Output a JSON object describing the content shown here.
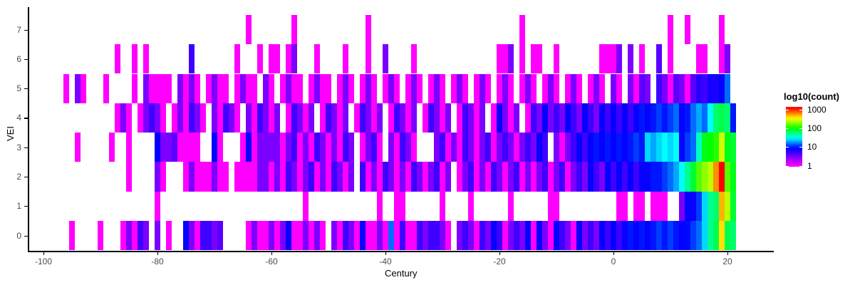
{
  "chart_data": {
    "type": "heatmap",
    "title": "",
    "xlabel": "Century",
    "ylabel": "VEI",
    "x_ticks": [
      -100,
      -80,
      -60,
      -40,
      -20,
      0,
      20
    ],
    "y_ticks": [
      0,
      1,
      2,
      3,
      4,
      5,
      6,
      7
    ],
    "x_range": [
      -96,
      21
    ],
    "grid": false,
    "legend": {
      "title": "log10(count)",
      "ticks": [
        1000,
        100,
        10,
        1
      ],
      "scale": "log10",
      "palette": "rainbow: magenta=1, violet=3, blue=10, cyan=30, green=100, yellow=400, orange=600, red=1000+",
      "position": "right"
    },
    "cells": {
      "7": {
        "-64": 1,
        "-56": 1,
        "-43": 1,
        "-16": 1,
        "10": 1,
        "13": 1,
        "19": 1
      },
      "6": {
        "-87": 1,
        "-84": 1,
        "-82": 1,
        "-74": 5,
        "-66": 1,
        "-62": 1,
        "-60": 1,
        "-59": 1,
        "-57": 1,
        "-56": 3,
        "-52": 1,
        "-47": 1,
        "-43": 1,
        "-40": 3,
        "-35": 1,
        "-20": 1,
        "-19": 1,
        "-18": 3,
        "-16": 1,
        "-14": 1,
        "-13": 1,
        "-10": 1,
        "-2": 1,
        "-1": 1,
        "0": 1,
        "1": 3,
        "3": 3,
        "5": 1,
        "8": 4,
        "10": 1,
        "15": 1,
        "16": 1,
        "19": 1,
        "20": 3
      },
      "5": {
        "-96": 1,
        "-94": 3,
        "-93": 1,
        "-89": 1,
        "-84": 1,
        "-82": 3,
        "-81": 1,
        "-80": 1,
        "-79": 1,
        "-78": 1,
        "-76": 3,
        "-75": 1,
        "-74": 3,
        "-73": 1,
        "-71": 1,
        "-70": 3,
        "-69": 1,
        "-68": 1,
        "-66": 1,
        "-65": 3,
        "-64": 1,
        "-63": 1,
        "-61": 3,
        "-60": 1,
        "-58": 1,
        "-57": 3,
        "-56": 1,
        "-55": 1,
        "-53": 1,
        "-52": 3,
        "-51": 1,
        "-50": 1,
        "-48": 1,
        "-47": 3,
        "-46": 1,
        "-44": 1,
        "-43": 3,
        "-42": 1,
        "-40": 1,
        "-39": 3,
        "-38": 1,
        "-36": 1,
        "-35": 3,
        "-34": 1,
        "-32": 1,
        "-31": 3,
        "-30": 1,
        "-28": 1,
        "-27": 3,
        "-26": 1,
        "-24": 1,
        "-23": 3,
        "-22": 1,
        "-20": 1,
        "-19": 3,
        "-18": 1,
        "-16": 1,
        "-15": 3,
        "-14": 1,
        "-12": 1,
        "-11": 3,
        "-10": 1,
        "-8": 1,
        "-7": 3,
        "-6": 1,
        "-4": 1,
        "-3": 3,
        "-2": 1,
        "0": 3,
        "1": 1,
        "3": 3,
        "4": 1,
        "5": 4,
        "6": 3,
        "8": 5,
        "9": 3,
        "10": 1,
        "11": 4,
        "12": 3,
        "13": 1,
        "14": 4,
        "15": 6,
        "16": 5,
        "17": 7,
        "18": 7,
        "19": 8,
        "20": 15
      },
      "4": {
        "-87": 1,
        "-86": 3,
        "-85": 1,
        "-83": 1,
        "-82": 3,
        "-81": 5,
        "-80": 3,
        "-79": 1,
        "-77": 1,
        "-76": 3,
        "-75": 1,
        "-74": 5,
        "-73": 3,
        "-72": 1,
        "-70": 3,
        "-69": 1,
        "-68": 5,
        "-67": 3,
        "-66": 1,
        "-64": 3,
        "-63": 1,
        "-62": 5,
        "-61": 3,
        "-60": 1,
        "-59": 3,
        "-57": 1,
        "-56": 5,
        "-55": 3,
        "-54": 1,
        "-53": 3,
        "-51": 1,
        "-50": 5,
        "-49": 3,
        "-48": 1,
        "-47": 3,
        "-45": 1,
        "-44": 5,
        "-43": 3,
        "-42": 1,
        "-41": 3,
        "-39": 1,
        "-38": 5,
        "-37": 3,
        "-36": 1,
        "-35": 3,
        "-33": 1,
        "-32": 5,
        "-31": 3,
        "-30": 1,
        "-29": 3,
        "-27": 1,
        "-26": 5,
        "-25": 3,
        "-24": 1,
        "-23": 3,
        "-21": 1,
        "-20": 8,
        "-19": 3,
        "-18": 1,
        "-17": 3,
        "-15": 1,
        "-14": 5,
        "-13": 3,
        "-12": 8,
        "-11": 3,
        "-10": 5,
        "-9": 3,
        "-8": 8,
        "-7": 5,
        "-6": 3,
        "-5": 8,
        "-4": 5,
        "-3": 3,
        "-2": 8,
        "-1": 5,
        "0": 8,
        "1": 5,
        "2": 8,
        "3": 5,
        "4": 8,
        "5": 10,
        "6": 8,
        "7": 10,
        "8": 12,
        "9": 10,
        "10": 12,
        "11": 15,
        "12": 8,
        "13": 10,
        "14": 15,
        "15": 20,
        "16": 15,
        "17": 30,
        "18": 60,
        "19": 70,
        "20": 60,
        "21": 10
      },
      "3": {
        "-94": 1,
        "-88": 1,
        "-85": 1,
        "-80": 8,
        "-79": 3,
        "-78": 3,
        "-77": 4,
        "-76": 1,
        "-75": 1,
        "-74": 1,
        "-73": 1,
        "-70": 8,
        "-69": 1,
        "-65": 1,
        "-64": 8,
        "-63": 1,
        "-62": 3,
        "-61": 3,
        "-60": 3,
        "-59": 3,
        "-58": 1,
        "-57": 3,
        "-56": 5,
        "-55": 1,
        "-54": 3,
        "-53": 1,
        "-52": 5,
        "-51": 3,
        "-50": 1,
        "-49": 3,
        "-48": 1,
        "-47": 5,
        "-46": 3,
        "-44": 1,
        "-43": 3,
        "-42": 5,
        "-41": 1,
        "-39": 3,
        "-38": 1,
        "-37": 5,
        "-36": 3,
        "-35": 1,
        "-31": 3,
        "-30": 5,
        "-29": 1,
        "-28": 3,
        "-27": 1,
        "-26": 5,
        "-25": 3,
        "-24": 1,
        "-23": 3,
        "-22": 5,
        "-21": 1,
        "-20": 3,
        "-19": 5,
        "-18": 3,
        "-17": 1,
        "-16": 3,
        "-15": 5,
        "-14": 3,
        "-13": 8,
        "-12": 5,
        "-10": 3,
        "-9": 1,
        "-8": 3,
        "-7": 5,
        "-6": 8,
        "-5": 5,
        "-4": 8,
        "-3": 10,
        "-2": 8,
        "-1": 10,
        "0": 8,
        "1": 10,
        "2": 8,
        "3": 10,
        "4": 12,
        "5": 10,
        "6": 25,
        "7": 20,
        "8": 25,
        "9": 30,
        "10": 25,
        "11": 30,
        "12": 8,
        "13": 12,
        "14": 15,
        "15": 40,
        "16": 90,
        "17": 100,
        "18": 120,
        "19": 280,
        "20": 90,
        "21": 80
      },
      "2": {
        "-85": 1,
        "-80": 3,
        "-79": 1,
        "-75": 1,
        "-74": 3,
        "-73": 1,
        "-72": 1,
        "-71": 1,
        "-70": 3,
        "-69": 1,
        "-68": 1,
        "-66": 1,
        "-65": 1,
        "-64": 1,
        "-63": 1,
        "-62": 3,
        "-61": 3,
        "-60": 1,
        "-59": 3,
        "-58": 1,
        "-57": 5,
        "-56": 3,
        "-55": 1,
        "-54": 3,
        "-53": 5,
        "-52": 1,
        "-51": 3,
        "-50": 1,
        "-49": 5,
        "-48": 3,
        "-47": 1,
        "-46": 3,
        "-44": 5,
        "-43": 1,
        "-42": 3,
        "-41": 1,
        "-40": 5,
        "-39": 3,
        "-38": 1,
        "-37": 3,
        "-36": 1,
        "-35": 5,
        "-34": 3,
        "-33": 1,
        "-32": 3,
        "-31": 5,
        "-30": 1,
        "-29": 3,
        "-27": 1,
        "-26": 3,
        "-25": 5,
        "-24": 1,
        "-23": 3,
        "-22": 1,
        "-21": 5,
        "-20": 3,
        "-19": 1,
        "-18": 3,
        "-17": 5,
        "-16": 1,
        "-15": 3,
        "-14": 1,
        "-13": 3,
        "-12": 5,
        "-11": 1,
        "-10": 3,
        "-9": 5,
        "-8": 1,
        "-7": 3,
        "-6": 5,
        "-5": 3,
        "-4": 8,
        "-3": 5,
        "-2": 3,
        "-1": 8,
        "0": 5,
        "1": 8,
        "2": 5,
        "3": 8,
        "4": 5,
        "5": 8,
        "6": 8,
        "7": 10,
        "8": 10,
        "9": 12,
        "10": 15,
        "11": 20,
        "12": 30,
        "13": 50,
        "14": 80,
        "15": 150,
        "16": 200,
        "17": 250,
        "18": 600,
        "19": 1200,
        "20": 150,
        "21": 90
      },
      "1": {
        "-80": 1,
        "-54": 1,
        "-41": 1,
        "-38": 1,
        "-37": 1,
        "-30": 1,
        "-25": 1,
        "-18": 1,
        "-11": 1,
        "-10": 1,
        "1": 1,
        "2": 1,
        "4": 1,
        "5": 1,
        "7": 1,
        "8": 1,
        "9": 1,
        "12": 3,
        "13": 8,
        "14": 8,
        "15": 12,
        "16": 25,
        "17": 50,
        "18": 60,
        "19": 500,
        "20": 250,
        "21": 80
      },
      "0": {
        "-95": 1,
        "-90": 1,
        "-86": 1,
        "-85": 3,
        "-84": 1,
        "-83": 5,
        "-82": 3,
        "-80": 3,
        "-78": 1,
        "-75": 8,
        "-74": 3,
        "-73": 1,
        "-72": 5,
        "-71": 5,
        "-70": 3,
        "-69": 4,
        "-64": 1,
        "-63": 3,
        "-62": 1,
        "-61": 1,
        "-60": 3,
        "-59": 1,
        "-58": 3,
        "-57": 8,
        "-56": 1,
        "-55": 1,
        "-54": 3,
        "-53": 1,
        "-52": 3,
        "-51": 1,
        "-49": 3,
        "-48": 1,
        "-47": 5,
        "-46": 3,
        "-45": 1,
        "-44": 8,
        "-43": 1,
        "-42": 1,
        "-41": 3,
        "-40": 1,
        "-39": 15,
        "-38": 1,
        "-37": 5,
        "-36": 1,
        "-35": 1,
        "-34": 5,
        "-33": 3,
        "-32": 5,
        "-31": 5,
        "-30": 3,
        "-29": 1,
        "-27": 3,
        "-26": 5,
        "-25": 3,
        "-24": 1,
        "-23": 5,
        "-22": 3,
        "-21": 8,
        "-20": 5,
        "-19": 1,
        "-18": 3,
        "-17": 5,
        "-16": 3,
        "-15": 8,
        "-14": 1,
        "-13": 8,
        "-12": 3,
        "-11": 1,
        "-10": 8,
        "-9": 5,
        "-8": 3,
        "-7": 1,
        "-6": 8,
        "-5": 3,
        "-4": 5,
        "-3": 3,
        "-2": 8,
        "-1": 5,
        "0": 8,
        "1": 5,
        "2": 8,
        "3": 10,
        "4": 8,
        "5": 10,
        "6": 8,
        "7": 10,
        "8": 12,
        "9": 10,
        "10": 12,
        "11": 10,
        "12": 8,
        "13": 9,
        "14": 12,
        "15": 15,
        "16": 25,
        "17": 50,
        "18": 70,
        "19": 400,
        "20": 70,
        "21": 60
      }
    }
  },
  "axes": {
    "x_title": "Century",
    "y_title": "VEI",
    "x_tick_labels": [
      "-100",
      "-80",
      "-60",
      "-40",
      "-20",
      "0",
      "20"
    ],
    "y_tick_labels": [
      "0",
      "1",
      "2",
      "3",
      "4",
      "5",
      "6",
      "7"
    ]
  },
  "colors": {
    "background": "#ffffff",
    "axis_line": "#000000",
    "tick_label": "#4d4d4d",
    "value_1": "#ff00ff",
    "value_10": "#0026ff",
    "value_100": "#00ff22",
    "value_1000": "#ff1a00"
  }
}
